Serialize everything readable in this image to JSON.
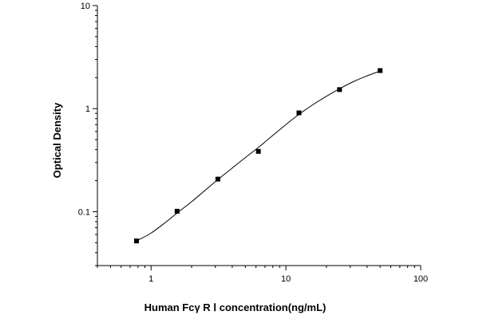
{
  "chart_data": {
    "type": "scatter",
    "title": "",
    "xlabel": "Human Fcγ R Ⅰ concentration(ng/mL)",
    "ylabel": "Optical Density",
    "xscale": "log",
    "yscale": "log",
    "xlim": [
      0.4,
      100
    ],
    "ylim": [
      0.03,
      10
    ],
    "grid": false,
    "legend": "none",
    "x_ticks": [
      {
        "value": 1,
        "label": "1"
      },
      {
        "value": 10,
        "label": "10"
      },
      {
        "value": 100,
        "label": "100"
      }
    ],
    "y_ticks": [
      {
        "value": 0.1,
        "label": "0.1"
      },
      {
        "value": 1,
        "label": "1"
      },
      {
        "value": 10,
        "label": "10"
      }
    ],
    "series": [
      {
        "type": "scatter",
        "x": [
          0.78,
          1.56,
          3.13,
          6.25,
          12.5,
          25,
          50
        ],
        "y": [
          0.052,
          0.101,
          0.207,
          0.385,
          0.91,
          1.53,
          2.34
        ]
      }
    ],
    "fit_curve": {
      "type": "line",
      "x": [
        0.78,
        1.0,
        1.3,
        1.56,
        2.0,
        2.5,
        3.13,
        4.0,
        5.0,
        6.25,
        8.0,
        10.0,
        12.5,
        16.0,
        20.0,
        25.0,
        32.0,
        40.0,
        50.0
      ],
      "y": [
        0.052,
        0.062,
        0.08,
        0.097,
        0.125,
        0.16,
        0.205,
        0.265,
        0.335,
        0.42,
        0.55,
        0.7,
        0.88,
        1.1,
        1.32,
        1.56,
        1.84,
        2.08,
        2.32
      ]
    }
  }
}
